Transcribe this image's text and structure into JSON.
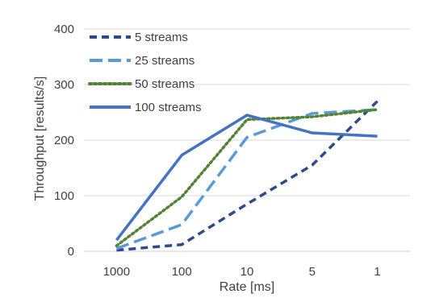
{
  "chart_data": {
    "type": "line",
    "title": "",
    "xlabel": "Rate [ms]",
    "ylabel": "Throughput [results/s]",
    "categories": [
      "1000",
      "100",
      "10",
      "5",
      "1"
    ],
    "ylim": [
      0,
      400
    ],
    "yticks": [
      "0",
      "100",
      "200",
      "300",
      "400"
    ],
    "grid": true,
    "legend_position": "top-left",
    "series": [
      {
        "name": "5 streams",
        "values": [
          2,
          12,
          85,
          155,
          270
        ],
        "color": "#2F4A8A",
        "dash": "dashed"
      },
      {
        "name": "25 streams",
        "values": [
          5,
          48,
          205,
          248,
          255
        ],
        "color": "#5B9BD5",
        "dash": "long-dash"
      },
      {
        "name": "50 streams",
        "values": [
          10,
          98,
          237,
          242,
          255
        ],
        "color": "#548235",
        "dash": "dotted"
      },
      {
        "name": "100 streams",
        "values": [
          20,
          173,
          245,
          213,
          207
        ],
        "color": "#4472C4",
        "dash": "solid"
      }
    ]
  }
}
